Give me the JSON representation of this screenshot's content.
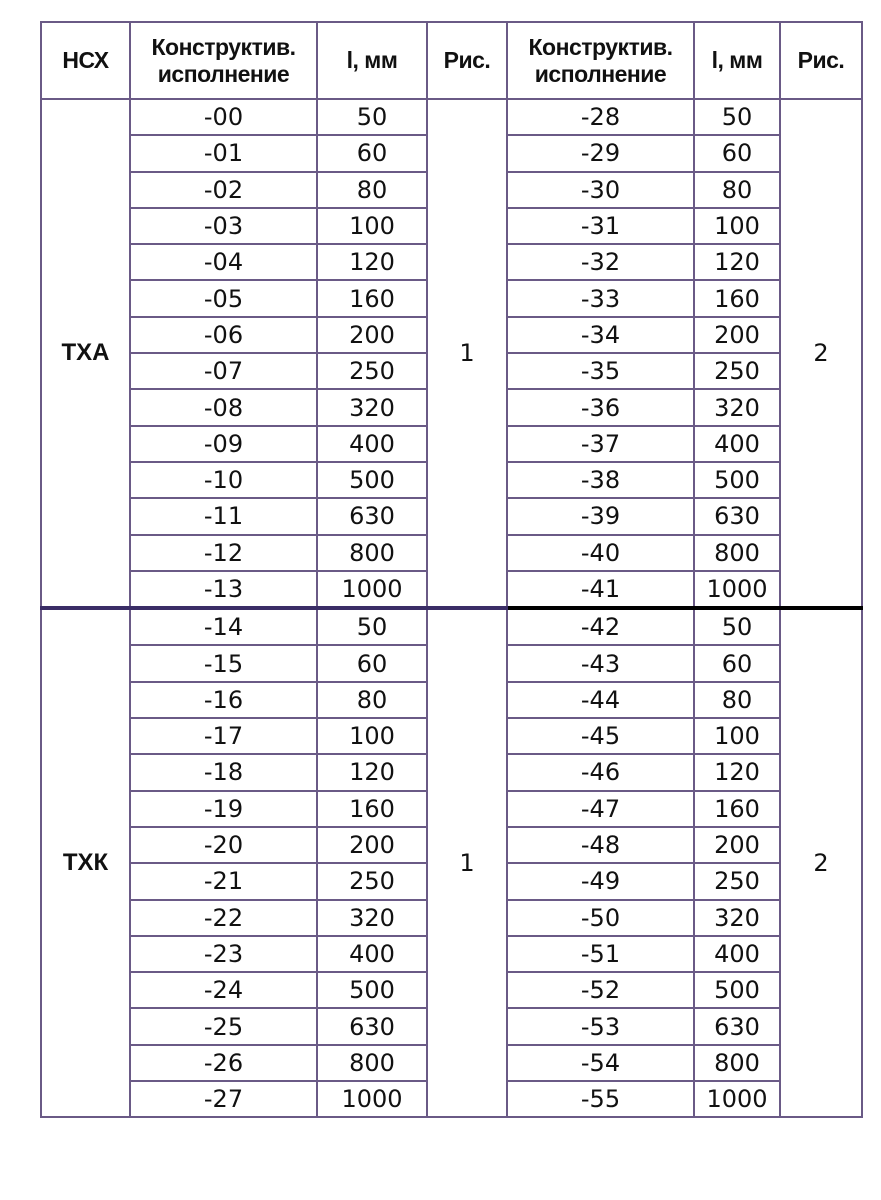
{
  "headers": {
    "nsx": "НСХ",
    "design_line1": "Конструктив.",
    "design_line2": "исполнение",
    "length": "l, мм",
    "figure": "Рис.",
    "design2_line1": "Конструктив.",
    "design2_line2": "исполнение",
    "length2": "l, мм",
    "figure2": "Рис."
  },
  "groups": [
    {
      "nsx": "ТХА",
      "figure_left": "1",
      "figure_right": "2",
      "rows": [
        {
          "left_code": "-00",
          "left_len": "50",
          "right_code": "-28",
          "right_len": "50"
        },
        {
          "left_code": "-01",
          "left_len": "60",
          "right_code": "-29",
          "right_len": "60"
        },
        {
          "left_code": "-02",
          "left_len": "80",
          "right_code": "-30",
          "right_len": "80"
        },
        {
          "left_code": "-03",
          "left_len": "100",
          "right_code": "-31",
          "right_len": "100"
        },
        {
          "left_code": "-04",
          "left_len": "120",
          "right_code": "-32",
          "right_len": "120"
        },
        {
          "left_code": "-05",
          "left_len": "160",
          "right_code": "-33",
          "right_len": "160"
        },
        {
          "left_code": "-06",
          "left_len": "200",
          "right_code": "-34",
          "right_len": "200"
        },
        {
          "left_code": "-07",
          "left_len": "250",
          "right_code": "-35",
          "right_len": "250"
        },
        {
          "left_code": "-08",
          "left_len": "320",
          "right_code": "-36",
          "right_len": "320"
        },
        {
          "left_code": "-09",
          "left_len": "400",
          "right_code": "-37",
          "right_len": "400"
        },
        {
          "left_code": "-10",
          "left_len": "500",
          "right_code": "-38",
          "right_len": "500"
        },
        {
          "left_code": "-11",
          "left_len": "630",
          "right_code": "-39",
          "right_len": "630"
        },
        {
          "left_code": "-12",
          "left_len": "800",
          "right_code": "-40",
          "right_len": "800"
        },
        {
          "left_code": "-13",
          "left_len": "1000",
          "right_code": "-41",
          "right_len": "1000"
        }
      ]
    },
    {
      "nsx": "ТХК",
      "figure_left": "1",
      "figure_right": "2",
      "rows": [
        {
          "left_code": "-14",
          "left_len": "50",
          "right_code": "-42",
          "right_len": "50"
        },
        {
          "left_code": "-15",
          "left_len": "60",
          "right_code": "-43",
          "right_len": "60"
        },
        {
          "left_code": "-16",
          "left_len": "80",
          "right_code": "-44",
          "right_len": "80"
        },
        {
          "left_code": "-17",
          "left_len": "100",
          "right_code": "-45",
          "right_len": "100"
        },
        {
          "left_code": "-18",
          "left_len": "120",
          "right_code": "-46",
          "right_len": "120"
        },
        {
          "left_code": "-19",
          "left_len": "160",
          "right_code": "-47",
          "right_len": "160"
        },
        {
          "left_code": "-20",
          "left_len": "200",
          "right_code": "-48",
          "right_len": "200"
        },
        {
          "left_code": "-21",
          "left_len": "250",
          "right_code": "-49",
          "right_len": "250"
        },
        {
          "left_code": "-22",
          "left_len": "320",
          "right_code": "-50",
          "right_len": "320"
        },
        {
          "left_code": "-23",
          "left_len": "400",
          "right_code": "-51",
          "right_len": "400"
        },
        {
          "left_code": "-24",
          "left_len": "500",
          "right_code": "-52",
          "right_len": "500"
        },
        {
          "left_code": "-25",
          "left_len": "630",
          "right_code": "-53",
          "right_len": "630"
        },
        {
          "left_code": "-26",
          "left_len": "800",
          "right_code": "-54",
          "right_len": "800"
        },
        {
          "left_code": "-27",
          "left_len": "1000",
          "right_code": "-55",
          "right_len": "1000"
        }
      ]
    }
  ],
  "colors": {
    "grid_line": "#6a5a86",
    "group_separator_left": "#3a2d66",
    "group_separator_right": "#000000"
  }
}
